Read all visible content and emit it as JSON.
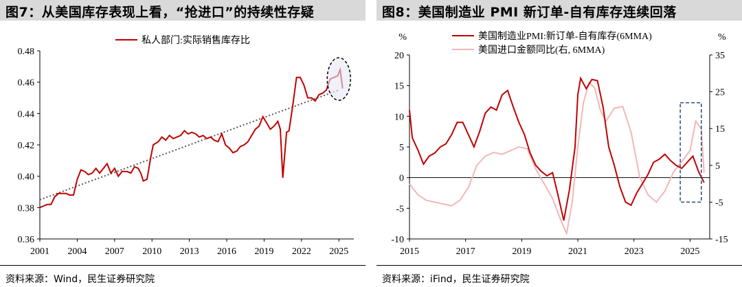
{
  "left": {
    "title": "图7：从美国库存表现上看，“抢进口”的持续性存疑",
    "source": "资料来源：Wind，民生证券研究院",
    "chart_data": {
      "type": "line",
      "series": [
        {
          "name": "私人部门:实际销售库存比",
          "color": "#c00000",
          "points": [
            [
              2001.0,
              0.38
            ],
            [
              2001.3,
              0.381
            ],
            [
              2001.6,
              0.382
            ],
            [
              2001.9,
              0.382
            ],
            [
              2002.2,
              0.387
            ],
            [
              2002.5,
              0.389
            ],
            [
              2002.8,
              0.389
            ],
            [
              2003.1,
              0.389
            ],
            [
              2003.4,
              0.388
            ],
            [
              2003.7,
              0.388
            ],
            [
              2004.0,
              0.398
            ],
            [
              2004.3,
              0.404
            ],
            [
              2004.6,
              0.403
            ],
            [
              2004.9,
              0.401
            ],
            [
              2005.2,
              0.402
            ],
            [
              2005.5,
              0.405
            ],
            [
              2005.8,
              0.402
            ],
            [
              2006.1,
              0.405
            ],
            [
              2006.4,
              0.408
            ],
            [
              2006.7,
              0.402
            ],
            [
              2007.0,
              0.405
            ],
            [
              2007.3,
              0.4
            ],
            [
              2007.6,
              0.403
            ],
            [
              2008.0,
              0.403
            ],
            [
              2008.3,
              0.402
            ],
            [
              2008.6,
              0.406
            ],
            [
              2008.9,
              0.405
            ],
            [
              2009.1,
              0.402
            ],
            [
              2009.3,
              0.397
            ],
            [
              2009.6,
              0.398
            ],
            [
              2009.9,
              0.412
            ],
            [
              2010.1,
              0.42
            ],
            [
              2010.5,
              0.422
            ],
            [
              2010.8,
              0.425
            ],
            [
              2011.1,
              0.423
            ],
            [
              2011.4,
              0.426
            ],
            [
              2011.7,
              0.424
            ],
            [
              2012.0,
              0.425
            ],
            [
              2012.3,
              0.426
            ],
            [
              2012.6,
              0.429
            ],
            [
              2012.9,
              0.427
            ],
            [
              2013.2,
              0.428
            ],
            [
              2013.5,
              0.427
            ],
            [
              2013.8,
              0.425
            ],
            [
              2014.1,
              0.426
            ],
            [
              2014.4,
              0.424
            ],
            [
              2014.7,
              0.425
            ],
            [
              2015.0,
              0.423
            ],
            [
              2015.3,
              0.422
            ],
            [
              2015.6,
              0.427
            ],
            [
              2015.9,
              0.42
            ],
            [
              2016.2,
              0.418
            ],
            [
              2016.5,
              0.415
            ],
            [
              2016.8,
              0.416
            ],
            [
              2017.1,
              0.419
            ],
            [
              2017.4,
              0.42
            ],
            [
              2017.7,
              0.422
            ],
            [
              2018.0,
              0.426
            ],
            [
              2018.3,
              0.43
            ],
            [
              2018.6,
              0.432
            ],
            [
              2018.9,
              0.438
            ],
            [
              2019.2,
              0.434
            ],
            [
              2019.5,
              0.43
            ],
            [
              2019.8,
              0.432
            ],
            [
              2020.1,
              0.435
            ],
            [
              2020.3,
              0.43
            ],
            [
              2020.5,
              0.399
            ],
            [
              2020.8,
              0.428
            ],
            [
              2021.0,
              0.429
            ],
            [
              2021.3,
              0.445
            ],
            [
              2021.6,
              0.463
            ],
            [
              2021.9,
              0.463
            ],
            [
              2022.2,
              0.458
            ],
            [
              2022.5,
              0.45
            ],
            [
              2022.8,
              0.45
            ],
            [
              2023.1,
              0.448
            ],
            [
              2023.4,
              0.452
            ],
            [
              2023.7,
              0.453
            ],
            [
              2024.0,
              0.455
            ],
            [
              2024.3,
              0.462
            ],
            [
              2024.6,
              0.463
            ],
            [
              2024.9,
              0.464
            ],
            [
              2025.1,
              0.468
            ],
            [
              2025.3,
              0.456
            ]
          ]
        }
      ],
      "trendline": {
        "style": "dotted",
        "color": "#555555",
        "from": [
          2001.0,
          0.385
        ],
        "to": [
          2025.0,
          0.455
        ]
      },
      "annotation": {
        "shape": "dashed-ellipse",
        "center": [
          2025.0,
          0.462
        ]
      },
      "xlim": [
        2001.0,
        2026.2
      ],
      "ylim": [
        0.36,
        0.48
      ],
      "xticks": [
        2001,
        2004,
        2007,
        2010,
        2013,
        2016,
        2019,
        2022,
        2025
      ],
      "yticks": [
        0.36,
        0.38,
        0.4,
        0.42,
        0.44,
        0.46,
        0.48
      ],
      "ytick_labels": [
        "0.36",
        "0.38",
        "0.40",
        "0.42",
        "0.44",
        "0.46",
        "0.48"
      ],
      "legend_position": "top-center"
    }
  },
  "right": {
    "title": "图8：美国制造业 PMI 新订单-自有库存连续回落",
    "source": "资料来源：iFind，民生证券研究院",
    "chart_data": {
      "type": "line",
      "left_axis_label": "%",
      "right_axis_label": "%",
      "series": [
        {
          "name": "美国制造业PMI:新订单-自有库存(6MMA)",
          "axis": "left",
          "color": "#c00000",
          "points": [
            [
              2015.0,
              11.0
            ],
            [
              2015.1,
              6.5
            ],
            [
              2015.3,
              4.5
            ],
            [
              2015.5,
              2.2
            ],
            [
              2015.7,
              3.5
            ],
            [
              2015.9,
              4.0
            ],
            [
              2016.1,
              5.0
            ],
            [
              2016.3,
              5.5
            ],
            [
              2016.5,
              7.0
            ],
            [
              2016.7,
              9.0
            ],
            [
              2016.9,
              9.0
            ],
            [
              2017.1,
              7.0
            ],
            [
              2017.3,
              5.0
            ],
            [
              2017.5,
              7.5
            ],
            [
              2017.7,
              10.5
            ],
            [
              2017.9,
              11.5
            ],
            [
              2018.1,
              11.0
            ],
            [
              2018.3,
              13.5
            ],
            [
              2018.5,
              14.2
            ],
            [
              2018.7,
              11.5
            ],
            [
              2018.9,
              9.0
            ],
            [
              2019.1,
              7.0
            ],
            [
              2019.3,
              4.0
            ],
            [
              2019.5,
              2.0
            ],
            [
              2019.7,
              1.0
            ],
            [
              2019.9,
              0.3
            ],
            [
              2020.1,
              0.8
            ],
            [
              2020.3,
              -3.0
            ],
            [
              2020.5,
              -7.0
            ],
            [
              2020.7,
              -2.0
            ],
            [
              2020.9,
              5.0
            ],
            [
              2021.0,
              13.5
            ],
            [
              2021.1,
              16.2
            ],
            [
              2021.3,
              14.5
            ],
            [
              2021.5,
              16.0
            ],
            [
              2021.7,
              15.8
            ],
            [
              2021.9,
              11.5
            ],
            [
              2022.1,
              5.0
            ],
            [
              2022.3,
              2.0
            ],
            [
              2022.5,
              -1.5
            ],
            [
              2022.7,
              -4.0
            ],
            [
              2022.9,
              -4.5
            ],
            [
              2023.1,
              -2.5
            ],
            [
              2023.3,
              -1.0
            ],
            [
              2023.5,
              0.5
            ],
            [
              2023.7,
              2.5
            ],
            [
              2023.9,
              3.0
            ],
            [
              2024.1,
              3.8
            ],
            [
              2024.3,
              2.8
            ],
            [
              2024.5,
              2.0
            ],
            [
              2024.7,
              1.5
            ],
            [
              2024.9,
              2.5
            ],
            [
              2025.1,
              3.5
            ],
            [
              2025.3,
              1.0
            ],
            [
              2025.5,
              -0.8
            ]
          ]
        },
        {
          "name": "美国进口金额同比(右, 6MMA)",
          "axis": "right",
          "color": "#f4b6b6",
          "points": [
            [
              2015.0,
              0.0
            ],
            [
              2015.3,
              -3.0
            ],
            [
              2015.6,
              -4.5
            ],
            [
              2015.9,
              -5.0
            ],
            [
              2016.2,
              -5.5
            ],
            [
              2016.5,
              -6.0
            ],
            [
              2016.8,
              -4.5
            ],
            [
              2017.1,
              -1.0
            ],
            [
              2017.4,
              5.0
            ],
            [
              2017.7,
              7.5
            ],
            [
              2018.0,
              8.5
            ],
            [
              2018.3,
              8.0
            ],
            [
              2018.6,
              9.0
            ],
            [
              2018.9,
              10.0
            ],
            [
              2019.2,
              9.5
            ],
            [
              2019.5,
              4.0
            ],
            [
              2019.8,
              0.0
            ],
            [
              2020.1,
              -4.0
            ],
            [
              2020.4,
              -10.0
            ],
            [
              2020.6,
              -13.5
            ],
            [
              2020.8,
              -5.0
            ],
            [
              2021.0,
              10.0
            ],
            [
              2021.2,
              22.0
            ],
            [
              2021.4,
              27.5
            ],
            [
              2021.6,
              26.0
            ],
            [
              2021.8,
              20.0
            ],
            [
              2022.0,
              17.0
            ],
            [
              2022.3,
              20.5
            ],
            [
              2022.6,
              21.0
            ],
            [
              2022.9,
              14.0
            ],
            [
              2023.2,
              2.0
            ],
            [
              2023.5,
              -3.0
            ],
            [
              2023.8,
              -5.0
            ],
            [
              2024.1,
              -2.0
            ],
            [
              2024.4,
              3.0
            ],
            [
              2024.7,
              6.0
            ],
            [
              2025.0,
              9.0
            ],
            [
              2025.2,
              17.0
            ],
            [
              2025.4,
              15.0
            ],
            [
              2025.5,
              3.0
            ]
          ]
        }
      ],
      "xlim": [
        2015.0,
        2025.7
      ],
      "left_ylim": [
        -10,
        20
      ],
      "right_ylim": [
        -15,
        35
      ],
      "xticks": [
        2015,
        2017,
        2019,
        2021,
        2023,
        2025
      ],
      "left_yticks": [
        -10,
        -5,
        0,
        5,
        10,
        15,
        20
      ],
      "right_yticks": [
        -15,
        -5,
        5,
        15,
        25,
        35
      ],
      "zero_line": true,
      "annotation": {
        "shape": "dashed-rect",
        "x_range": [
          2024.65,
          2025.4
        ],
        "right_y_range": [
          -5,
          22
        ]
      },
      "legend_position": "top-center"
    }
  }
}
